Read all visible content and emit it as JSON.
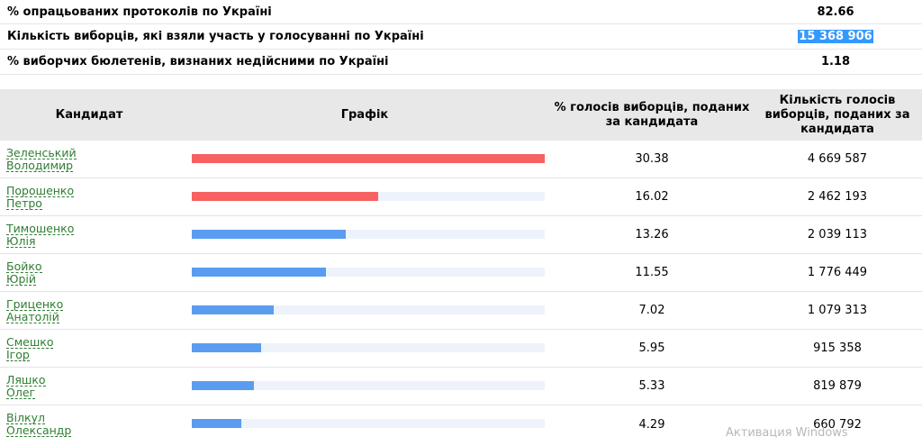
{
  "summary": [
    {
      "label": "% опрацьованих протоколів по Україні",
      "value": "82.66",
      "highlighted": false
    },
    {
      "label": "Кількість виборців, які взяли участь у голосуванні по Україні",
      "value": "15 368 906",
      "highlighted": true
    },
    {
      "label": "% виборчих бюлетенів, визнаних недійсними по Україні",
      "value": "1.18",
      "highlighted": false
    }
  ],
  "table": {
    "headers": {
      "candidate": "Кандидат",
      "graph": "Графік",
      "percent": "% голосів виборців, поданих за кандидата",
      "votes": "Кількість голосів виборців, поданих за кандидата"
    },
    "max_percent": 30.38,
    "colors": {
      "leader": "#f76161",
      "other": "#5a9cf0",
      "track": "#eef2fb",
      "link": "#2e7d32"
    },
    "rows": [
      {
        "surname": "Зеленський",
        "firstname": "Володимир",
        "percent": "30.38",
        "votes": "4 669 587",
        "color": "#f76161"
      },
      {
        "surname": "Порошенко",
        "firstname": "Петро",
        "percent": "16.02",
        "votes": "2 462 193",
        "color": "#f76161"
      },
      {
        "surname": "Тимошенко",
        "firstname": "Юлія",
        "percent": "13.26",
        "votes": "2 039 113",
        "color": "#5a9cf0"
      },
      {
        "surname": "Бойко",
        "firstname": "Юрій",
        "percent": "11.55",
        "votes": "1 776 449",
        "color": "#5a9cf0"
      },
      {
        "surname": "Гриценко",
        "firstname": "Анатолій",
        "percent": "7.02",
        "votes": "1 079 313",
        "color": "#5a9cf0"
      },
      {
        "surname": "Смешко",
        "firstname": "Ігор",
        "percent": "5.95",
        "votes": "915 358",
        "color": "#5a9cf0"
      },
      {
        "surname": "Ляшко",
        "firstname": "Олег",
        "percent": "5.33",
        "votes": "819 879",
        "color": "#5a9cf0"
      },
      {
        "surname": "Вілкул",
        "firstname": "Олександр",
        "percent": "4.29",
        "votes": "660 792",
        "color": "#5a9cf0"
      }
    ]
  },
  "watermark": "Активация Windows"
}
